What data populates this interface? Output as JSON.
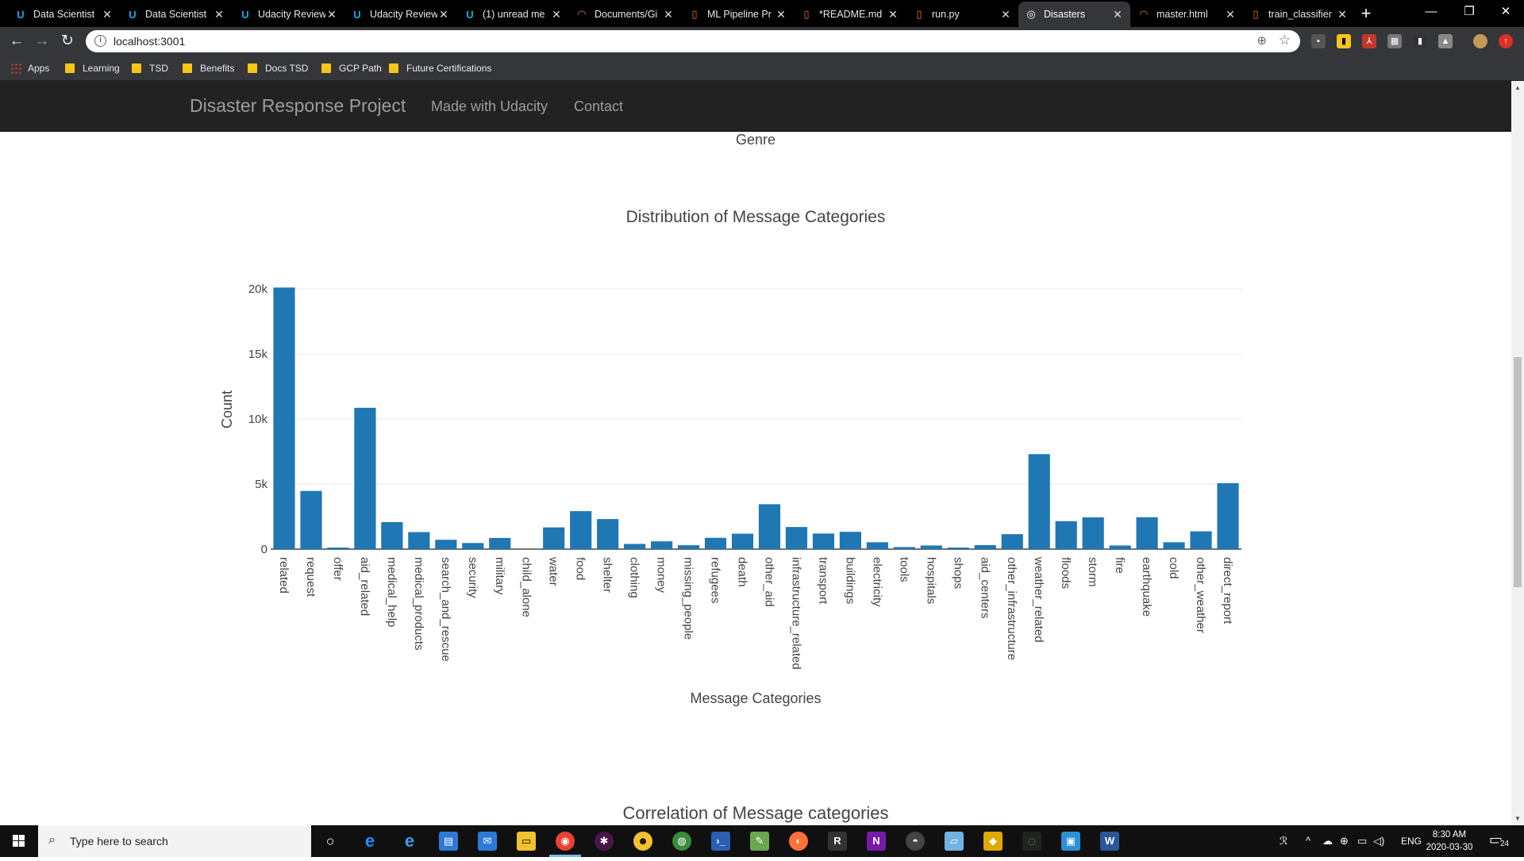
{
  "browser": {
    "tabs": [
      {
        "title": "Data Scientist",
        "icon": "udacity-icon",
        "color": "#02b3e4"
      },
      {
        "title": "Data Scientist",
        "icon": "udacity-icon",
        "color": "#02b3e4"
      },
      {
        "title": "Udacity Review",
        "icon": "udacity-icon",
        "color": "#02b3e4"
      },
      {
        "title": "Udacity Review",
        "icon": "udacity-icon",
        "color": "#02b3e4"
      },
      {
        "title": "(1) unread me",
        "icon": "udacity-icon",
        "color": "#02b3e4"
      },
      {
        "title": "Documents/Gi",
        "icon": "jupyter-icon",
        "color": "#f37626"
      },
      {
        "title": "ML Pipeline Pr",
        "icon": "notebook-icon",
        "color": "#f37626"
      },
      {
        "title": "*README.md",
        "icon": "file-icon",
        "color": "#f37626"
      },
      {
        "title": "run.py",
        "icon": "file-icon",
        "color": "#f37626"
      },
      {
        "title": "Disasters",
        "icon": "globe-icon",
        "color": "#ffffff",
        "active": true
      },
      {
        "title": "master.html",
        "icon": "jupyter-icon",
        "color": "#f37626"
      },
      {
        "title": "train_classifier",
        "icon": "file-icon",
        "color": "#f37626"
      }
    ],
    "url": "localhost:3001",
    "bookmarks": [
      {
        "label": "Apps"
      },
      {
        "label": "Learning"
      },
      {
        "label": "TSD"
      },
      {
        "label": "Benefits"
      },
      {
        "label": "Docs TSD"
      },
      {
        "label": "GCP Path"
      },
      {
        "label": "Future Certifications"
      }
    ]
  },
  "navbar": {
    "brand": "Disaster Response Project",
    "links": [
      "Made with Udacity",
      "Contact"
    ]
  },
  "previous_chart_xlabel": "Genre",
  "next_chart_title": "Correlation of Message categories",
  "chart_data": {
    "type": "bar",
    "title": "Distribution of Message Categories",
    "xlabel": "Message Categories",
    "ylabel": "Count",
    "ylim": [
      0,
      20000
    ],
    "yticks": [
      0,
      5000,
      10000,
      15000,
      20000
    ],
    "ytick_labels": [
      "0",
      "5k",
      "10k",
      "15k",
      "20k"
    ],
    "grid": true,
    "bar_color": "#1f77b4",
    "categories": [
      "related",
      "request",
      "offer",
      "aid_related",
      "medical_help",
      "medical_products",
      "search_and_rescue",
      "security",
      "military",
      "child_alone",
      "water",
      "food",
      "shelter",
      "clothing",
      "money",
      "missing_people",
      "refugees",
      "death",
      "other_aid",
      "infrastructure_related",
      "transport",
      "buildings",
      "electricity",
      "tools",
      "hospitals",
      "shops",
      "aid_centers",
      "other_infrastructure",
      "weather_related",
      "floods",
      "storm",
      "fire",
      "earthquake",
      "cold",
      "other_weather",
      "direct_report"
    ],
    "values": [
      20100,
      4470,
      120,
      10860,
      2080,
      1310,
      720,
      470,
      860,
      0,
      1670,
      2920,
      2310,
      400,
      600,
      300,
      870,
      1190,
      3450,
      1700,
      1200,
      1330,
      530,
      160,
      280,
      120,
      310,
      1150,
      7300,
      2150,
      2440,
      280,
      2450,
      530,
      1370,
      5070
    ]
  },
  "taskbar": {
    "search_placeholder": "Type here to search",
    "language": "ENG",
    "time": "8:30 AM",
    "date": "2020-03-30",
    "notifications": "24"
  }
}
